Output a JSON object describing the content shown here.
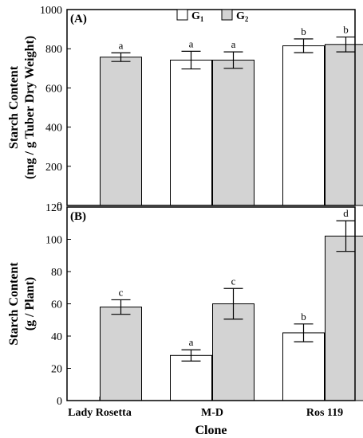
{
  "chart_data": [
    {
      "type": "bar",
      "panel_label": "(A)",
      "categories": [
        "Lady Rosetta",
        "M-D",
        "Ros 119"
      ],
      "ylabel_line1": "Starch Content",
      "ylabel_line2": "(mg / g Tuber Dry Weight)",
      "ylim": [
        0,
        1000
      ],
      "yticks": [
        "0",
        "200",
        "400",
        "600",
        "800",
        "1000"
      ],
      "series": [
        {
          "name": "G",
          "subscript": "1",
          "color": "#ffffff",
          "values": [
            null,
            742,
            815
          ],
          "errors": [
            null,
            45,
            35
          ],
          "letters": [
            null,
            "a",
            "b"
          ]
        },
        {
          "name": "G",
          "subscript": "2",
          "color": "#d3d3d3",
          "values": [
            757,
            742,
            822
          ],
          "errors": [
            22,
            42,
            38
          ],
          "letters": [
            "a",
            "a",
            "b"
          ]
        }
      ],
      "legend_position": "top-center",
      "grid": false
    },
    {
      "type": "bar",
      "panel_label": "(B)",
      "categories": [
        "Lady Rosetta",
        "M-D",
        "Ros 119"
      ],
      "ylabel_line1": "Starch Content",
      "ylabel_line2": "(g / Plant)",
      "xlabel": "Clone",
      "ylim": [
        0,
        120
      ],
      "yticks": [
        "0",
        "20",
        "40",
        "60",
        "80",
        "100",
        "120"
      ],
      "series": [
        {
          "name": "G",
          "subscript": "1",
          "color": "#ffffff",
          "values": [
            null,
            28,
            42
          ],
          "errors": [
            null,
            3.5,
            5.5
          ],
          "letters": [
            null,
            "a",
            "b"
          ]
        },
        {
          "name": "G",
          "subscript": "2",
          "color": "#d3d3d3",
          "values": [
            58,
            60,
            102
          ],
          "errors": [
            4.5,
            9.5,
            9.5
          ],
          "letters": [
            "c",
            "c",
            "d"
          ]
        }
      ],
      "grid": false
    }
  ]
}
